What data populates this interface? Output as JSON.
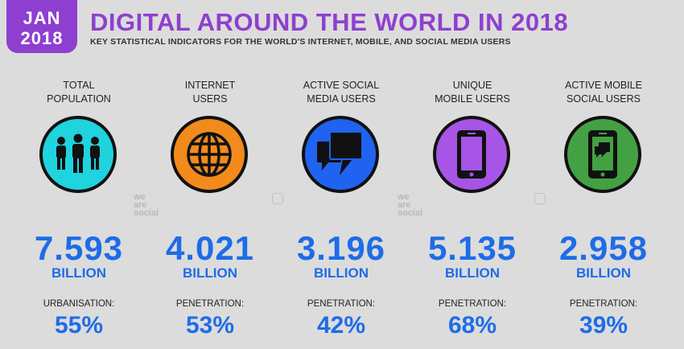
{
  "header": {
    "badge_month": "JAN",
    "badge_year": "2018",
    "title": "DIGITAL AROUND THE WORLD IN 2018",
    "subtitle": "KEY STATISTICAL INDICATORS FOR THE WORLD'S INTERNET, MOBILE, AND SOCIAL MEDIA USERS"
  },
  "colors": {
    "brand_purple": "#8e3fd0",
    "value_blue": "#1e6ce8"
  },
  "stats": [
    {
      "label_line1": "TOTAL",
      "label_line2": "POPULATION",
      "icon": "people-icon",
      "circle_color": "#1fd3df",
      "value": "7.593",
      "unit": "BILLION",
      "metric_label": "URBANISATION:",
      "metric_value": "55%"
    },
    {
      "label_line1": "INTERNET",
      "label_line2": "USERS",
      "icon": "globe-icon",
      "circle_color": "#f28a1c",
      "value": "4.021",
      "unit": "BILLION",
      "metric_label": "PENETRATION:",
      "metric_value": "53%"
    },
    {
      "label_line1": "ACTIVE SOCIAL",
      "label_line2": "MEDIA USERS",
      "icon": "chat-bubbles-icon",
      "circle_color": "#1f63f0",
      "value": "3.196",
      "unit": "BILLION",
      "metric_label": "PENETRATION:",
      "metric_value": "42%"
    },
    {
      "label_line1": "UNIQUE",
      "label_line2": "MOBILE USERS",
      "icon": "mobile-phone-icon",
      "circle_color": "#a655e6",
      "value": "5.135",
      "unit": "BILLION",
      "metric_label": "PENETRATION:",
      "metric_value": "68%"
    },
    {
      "label_line1": "ACTIVE MOBILE",
      "label_line2": "SOCIAL USERS",
      "icon": "mobile-chat-icon",
      "circle_color": "#43a143",
      "value": "2.958",
      "unit": "BILLION",
      "metric_label": "PENETRATION:",
      "metric_value": "39%"
    }
  ],
  "watermarks": [
    {
      "line1": "we",
      "line2": "are",
      "line3": "social"
    },
    {
      "line1": "we",
      "line2": "are",
      "line3": "social"
    }
  ]
}
